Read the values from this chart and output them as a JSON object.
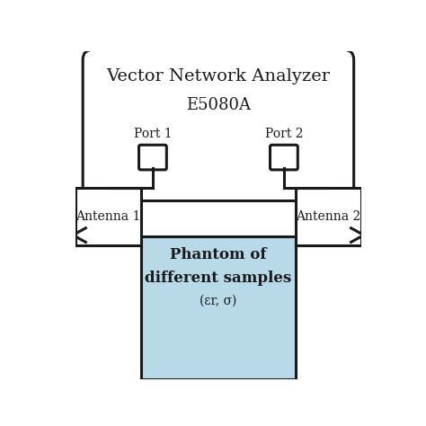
{
  "title": "Vector Network Analyzer",
  "subtitle": "E5080A",
  "port1_label": "Port 1",
  "port2_label": "Port 2",
  "antenna1_label": "Antenna 1",
  "antenna2_label": "Antenna 2",
  "phantom_line1": "Phantom of",
  "phantom_line2": "different samples",
  "phantom_line3": "(εr, σ)",
  "vna_box_color": "#ffffff",
  "vna_border_color": "#1a1a1a",
  "phantom_fill_color": "#b8d9e8",
  "phantom_border_color": "#1a1a1a",
  "antenna_fill_color": "#ffffff",
  "antenna_border_color": "#1a1a1a",
  "line_color": "#1a1a1a",
  "text_color": "#1a1a1a",
  "background_color": "#ffffff",
  "lw": 2.2
}
